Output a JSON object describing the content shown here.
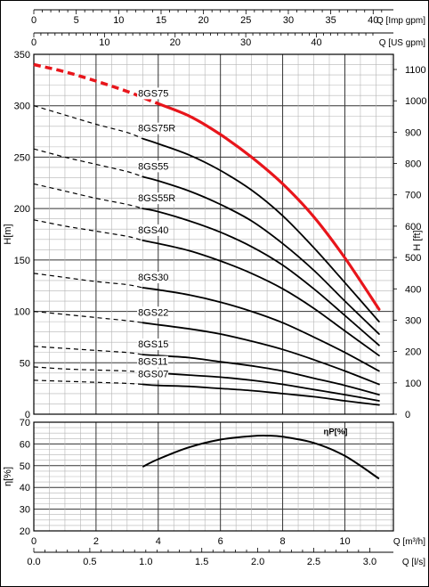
{
  "chart_data": [
    {
      "type": "line",
      "title": "",
      "xlabel": "Q [m³/h]",
      "ylabel": "H[m]",
      "ylabel_right": "H [ft]",
      "xlim": [
        0,
        11.1
      ],
      "ylim": [
        0,
        350
      ],
      "x_ticks": [
        0,
        2,
        4,
        6,
        8,
        10
      ],
      "y_ticks": [
        0,
        50,
        100,
        150,
        200,
        250,
        300,
        350
      ],
      "right_axis": {
        "label": "H [ft]",
        "ticks": [
          0,
          100,
          200,
          300,
          400,
          500,
          600,
          700,
          800,
          900,
          1000,
          1100
        ]
      },
      "top_axis_us": {
        "label": "Q [US gpm]",
        "ticks": [
          0,
          10,
          20,
          30,
          40
        ]
      },
      "top_axis_imp": {
        "label": "Q [Imp gpm]",
        "ticks": [
          0,
          5,
          10,
          15,
          20,
          25,
          30,
          35,
          40
        ]
      },
      "grid": true,
      "legend": "none",
      "series": [
        {
          "name": "8GS75",
          "color": "#e8151b",
          "dashed": {
            "x": [
              0,
              1,
              2,
              3,
              3.5,
              4
            ],
            "y": [
              340,
              333,
              324,
              314,
              308,
              302
            ]
          },
          "solid": {
            "x": [
              4,
              5,
              6,
              7,
              8,
              9,
              10,
              11.1
            ],
            "y": [
              302,
              290,
              272,
              250,
              224,
              192,
              152,
              102
            ]
          }
        },
        {
          "name": "8GS75R",
          "color": "#000000",
          "dashed": {
            "x": [
              0,
              1,
              2,
              3,
              3.5
            ],
            "y": [
              300,
              291,
              282,
              274,
              268
            ]
          },
          "solid": {
            "x": [
              3.5,
              4,
              5,
              6,
              7,
              8,
              9,
              10,
              11.1
            ],
            "y": [
              268,
              263,
              252,
              237,
              218,
              193,
              162,
              128,
              90
            ]
          }
        },
        {
          "name": "8GS55",
          "color": "#000000",
          "dashed": {
            "x": [
              0,
              1,
              2,
              3,
              3.5
            ],
            "y": [
              258,
              250,
              243,
              236,
              231
            ]
          },
          "solid": {
            "x": [
              3.5,
              4,
              5,
              6,
              7,
              8,
              9,
              10,
              11.1
            ],
            "y": [
              231,
              227,
              217,
              204,
              188,
              166,
              140,
              110,
              78
            ]
          }
        },
        {
          "name": "8GS55R",
          "color": "#000000",
          "dashed": {
            "x": [
              0,
              1,
              2,
              3,
              3.5
            ],
            "y": [
              224,
              217,
              210,
              204,
              200
            ]
          },
          "solid": {
            "x": [
              3.5,
              4,
              5,
              6,
              7,
              8,
              9,
              10,
              11.1
            ],
            "y": [
              200,
              197,
              188,
              177,
              163,
              145,
              122,
              96,
              67
            ]
          }
        },
        {
          "name": "8GS40",
          "color": "#000000",
          "dashed": {
            "x": [
              0,
              1,
              2,
              3,
              3.5
            ],
            "y": [
              189,
              183,
              178,
              173,
              169
            ]
          },
          "solid": {
            "x": [
              3.5,
              4,
              5,
              6,
              7,
              8,
              9,
              10,
              11.1
            ],
            "y": [
              169,
              166,
              159,
              149,
              137,
              122,
              103,
              81,
              57
            ]
          }
        },
        {
          "name": "8GS30",
          "color": "#000000",
          "dashed": {
            "x": [
              0,
              1,
              2,
              3,
              3.5
            ],
            "y": [
              137,
              133,
              129,
              126,
              123
            ]
          },
          "solid": {
            "x": [
              3.5,
              4,
              5,
              6,
              7,
              8,
              9,
              10,
              11.1
            ],
            "y": [
              123,
              121,
              116,
              109,
              100,
              89,
              75,
              60,
              42
            ]
          }
        },
        {
          "name": "8GS22",
          "color": "#000000",
          "dashed": {
            "x": [
              0,
              1,
              2,
              3,
              3.5
            ],
            "y": [
              100,
              97,
              94,
              91,
              89
            ]
          },
          "solid": {
            "x": [
              3.5,
              4,
              5,
              6,
              7,
              8,
              9,
              10,
              11.1
            ],
            "y": [
              89,
              87,
              83,
              78,
              71,
              63,
              53,
              42,
              29
            ]
          }
        },
        {
          "name": "8GS15",
          "color": "#000000",
          "dashed": {
            "x": [
              0,
              1,
              2,
              3,
              3.5
            ],
            "y": [
              66,
              64,
              62,
              60,
              58
            ]
          },
          "solid": {
            "x": [
              3.5,
              4,
              5,
              6,
              7,
              8,
              9,
              10,
              11.1
            ],
            "y": [
              58,
              57,
              55,
              51,
              47,
              42,
              35,
              28,
              19
            ]
          }
        },
        {
          "name": "8GS11",
          "color": "#000000",
          "dashed": {
            "x": [
              0,
              1,
              2,
              3,
              3.5
            ],
            "y": [
              46,
              44,
              43,
              42,
              41
            ]
          },
          "solid": {
            "x": [
              3.5,
              4,
              5,
              6,
              7,
              8,
              9,
              10,
              11.1
            ],
            "y": [
              41,
              40,
              38,
              36,
              33,
              29,
              24,
              19,
              13
            ]
          }
        },
        {
          "name": "8GS07",
          "color": "#000000",
          "dashed": {
            "x": [
              0,
              1,
              2,
              3,
              3.5
            ],
            "y": [
              33,
              32,
              31,
              30,
              29
            ]
          },
          "solid": {
            "x": [
              3.5,
              4,
              5,
              6,
              7,
              8,
              9,
              10,
              11.1
            ],
            "y": [
              29,
              28,
              27,
              25,
              23,
              20,
              17,
              13,
              9
            ]
          }
        }
      ]
    },
    {
      "type": "line",
      "title": "",
      "xlabel": "Q [m³/h]",
      "ylabel": "η[%]",
      "xlim": [
        0,
        11.1
      ],
      "ylim": [
        20,
        70
      ],
      "x_ticks": [
        0,
        2,
        4,
        6,
        8,
        10
      ],
      "y_ticks": [
        20,
        30,
        40,
        50,
        60,
        70
      ],
      "bottom_axis_ls": {
        "label": "Q [l/s]",
        "ticks": [
          0.0,
          0.5,
          1.0,
          1.5,
          2.0,
          2.5,
          3.0
        ]
      },
      "grid": true,
      "legend": "none",
      "series": [
        {
          "name": "ηP[%]",
          "color": "#000000",
          "x": [
            3.5,
            4,
            5,
            6,
            7,
            7.5,
            8,
            9,
            10,
            11.1
          ],
          "y": [
            49.5,
            53,
            58.5,
            62,
            63.6,
            63.8,
            63.3,
            60.5,
            54.5,
            44
          ]
        }
      ]
    }
  ]
}
